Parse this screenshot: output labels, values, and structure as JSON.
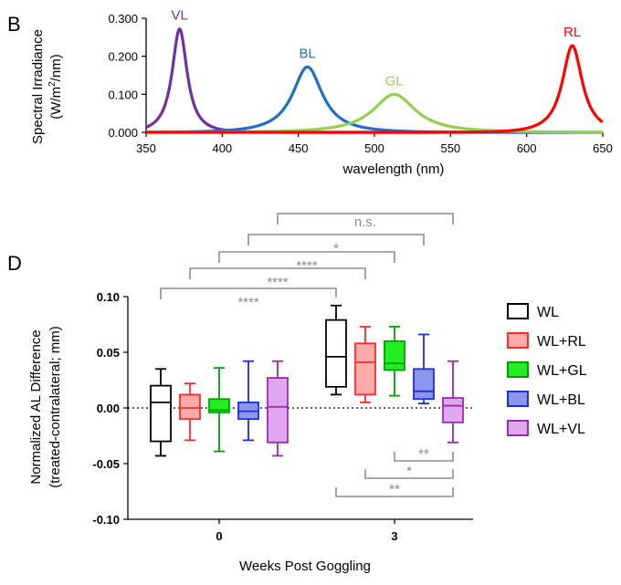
{
  "chart_data": [
    {
      "panel_label": "B",
      "type": "line",
      "xlabel": "wavelength (nm)",
      "ylabel_line1": "Spectral Irradiance",
      "ylabel_line2_pre": "(W/m",
      "ylabel_line2_sup": "2",
      "ylabel_line2_post": "/nm)",
      "xlim": [
        350,
        650
      ],
      "ylim": [
        0,
        0.3
      ],
      "xticks": [
        350,
        400,
        450,
        500,
        550,
        600,
        650
      ],
      "xtick_labels": [
        "350",
        "400",
        "450",
        "500",
        "550",
        "600",
        "650"
      ],
      "yticks": [
        0,
        0.1,
        0.2,
        0.3
      ],
      "ytick_labels": [
        "0.000",
        "0.100",
        "0.200",
        "0.300"
      ],
      "series": [
        {
          "name": "VL",
          "color": "#7030a0",
          "peak_nm": 372,
          "peak_value": 0.272,
          "fwhm_nm": 12
        },
        {
          "name": "BL",
          "color": "#1f6fc6",
          "peak_nm": 456,
          "peak_value": 0.172,
          "fwhm_nm": 24
        },
        {
          "name": "GL",
          "color": "#92d050",
          "peak_nm": 513,
          "peak_value": 0.1,
          "fwhm_nm": 34
        },
        {
          "name": "RL",
          "color": "#ff0000",
          "peak_nm": 630,
          "peak_value": 0.228,
          "fwhm_nm": 16
        }
      ]
    },
    {
      "panel_label": "D",
      "type": "box",
      "xlabel": "Weeks Post Goggling",
      "ylabel_line1": "Normalized AL Difference",
      "ylabel_line2": "(treated-contralateral; mm)",
      "ylim": [
        -0.1,
        0.1
      ],
      "yticks": [
        -0.1,
        -0.05,
        0,
        0.05,
        0.1
      ],
      "ytick_labels": [
        "-0.10",
        "-0.05",
        "0.00",
        "0.05",
        "0.10"
      ],
      "categories": [
        "0",
        "3"
      ],
      "zero_line": "dotted",
      "legend_position": "right",
      "series": [
        {
          "name": "WL",
          "border": "#000000",
          "fill": "#ffffff",
          "boxes": [
            {
              "week": "0",
              "min": -0.043,
              "q1": -0.03,
              "median": 0.005,
              "q3": 0.02,
              "max": 0.035
            },
            {
              "week": "3",
              "min": 0.012,
              "q1": 0.019,
              "median": 0.046,
              "q3": 0.079,
              "max": 0.092
            }
          ]
        },
        {
          "name": "WL+RL",
          "border": "#ff2a2a",
          "fill": "#ffaaaa",
          "boxes": [
            {
              "week": "0",
              "min": -0.029,
              "q1": -0.01,
              "median": 0.0,
              "q3": 0.012,
              "max": 0.022
            },
            {
              "week": "3",
              "min": 0.005,
              "q1": 0.012,
              "median": 0.041,
              "q3": 0.058,
              "max": 0.073
            }
          ]
        },
        {
          "name": "WL+GL",
          "border": "#00a000",
          "fill": "#22ee22",
          "boxes": [
            {
              "week": "0",
              "min": -0.039,
              "q1": -0.004,
              "median": -0.002,
              "q3": 0.008,
              "max": 0.036
            },
            {
              "week": "3",
              "min": 0.011,
              "q1": 0.034,
              "median": 0.04,
              "q3": 0.06,
              "max": 0.073
            }
          ]
        },
        {
          "name": "WL+BL",
          "border": "#1c2fd6",
          "fill": "#8c96ee",
          "boxes": [
            {
              "week": "0",
              "min": -0.029,
              "q1": -0.01,
              "median": -0.003,
              "q3": 0.005,
              "max": 0.042
            },
            {
              "week": "3",
              "min": 0.004,
              "q1": 0.008,
              "median": 0.015,
              "q3": 0.035,
              "max": 0.066
            }
          ]
        },
        {
          "name": "WL+VL",
          "border": "#9c27b0",
          "fill": "#dfa8ee",
          "boxes": [
            {
              "week": "0",
              "min": -0.043,
              "q1": -0.031,
              "median": 0.001,
              "q3": 0.027,
              "max": 0.042
            },
            {
              "week": "3",
              "min": -0.031,
              "q1": -0.013,
              "median": 0.002,
              "q3": 0.009,
              "max": 0.042
            }
          ]
        }
      ],
      "significance": [
        {
          "group1": "WL week 0",
          "group2": "WL week 3",
          "label": "****"
        },
        {
          "group1": "WL+RL week 0",
          "group2": "WL+RL week 3",
          "label": "****"
        },
        {
          "group1": "WL+GL week 0",
          "group2": "WL+GL week 3",
          "label": "****"
        },
        {
          "group1": "WL+BL week 0",
          "group2": "WL+BL week 3",
          "label": "*"
        },
        {
          "group1": "WL+VL week 0",
          "group2": "WL+VL week 3",
          "label": "n.s."
        },
        {
          "group1": "WL+GL week 3",
          "group2": "WL+VL week 3",
          "label": "**"
        },
        {
          "group1": "WL+RL week 3",
          "group2": "WL+VL week 3",
          "label": "*"
        },
        {
          "group1": "WL week 3",
          "group2": "WL+VL week 3",
          "label": "**"
        }
      ]
    }
  ]
}
